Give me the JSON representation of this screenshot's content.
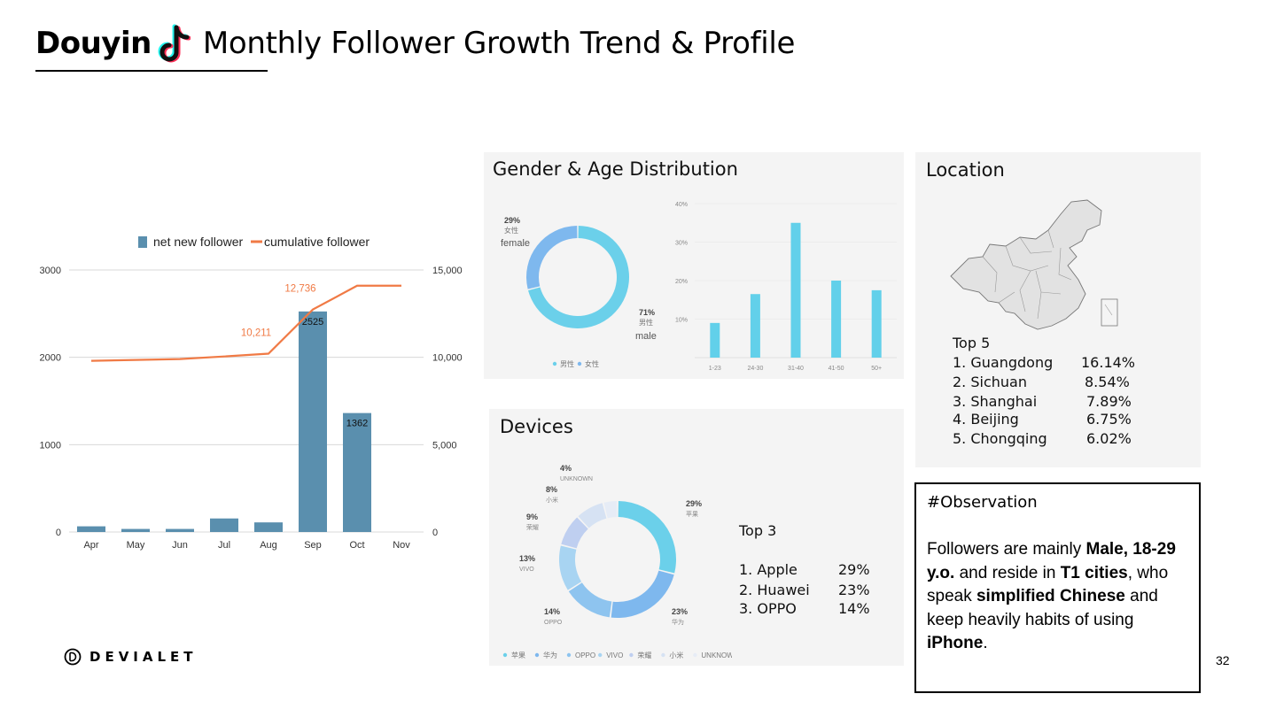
{
  "header": {
    "brand": "Douyin",
    "title": "Monthly Follower Growth Trend & Profile"
  },
  "chart_data": [
    {
      "type": "bar+line",
      "title": "",
      "legend": [
        "net new follower",
        "cumulative follower"
      ],
      "legend_position": "top",
      "categories": [
        "Apr",
        "May",
        "Jun",
        "Jul",
        "Aug",
        "Sep",
        "Oct",
        "Nov"
      ],
      "series": [
        {
          "name": "net new follower",
          "type": "bar",
          "axis": "left",
          "values": [
            65,
            35,
            35,
            155,
            110,
            2525,
            1362,
            0
          ]
        },
        {
          "name": "cumulative follower",
          "type": "line",
          "axis": "right",
          "values": [
            9800,
            9850,
            9900,
            10050,
            10211,
            12736,
            14100,
            14100
          ]
        }
      ],
      "bar_labels": {
        "5": "2525",
        "6": "1362"
      },
      "line_labels": {
        "4": "10,211",
        "5": "12,736"
      },
      "ylim_left": [
        0,
        3000
      ],
      "yticks_left": [
        "0",
        "1000",
        "2000",
        "3000"
      ],
      "ylim_right": [
        0,
        15000
      ],
      "yticks_right": [
        "0",
        "5,000",
        "10,000",
        "15,000"
      ],
      "grid": true,
      "colors": {
        "bar": "#5a8fae",
        "line": "#f07a45"
      }
    },
    {
      "type": "pie",
      "title": "Gender & Age Distribution",
      "labels": [
        "男性",
        "女性"
      ],
      "values": [
        71,
        29
      ],
      "value_labels": [
        "71%",
        "29%"
      ],
      "annotations": [
        "male",
        "female"
      ],
      "colors": [
        "#6bd0ea",
        "#7eb8ee"
      ]
    },
    {
      "type": "bar",
      "categories": [
        "1-23",
        "24-30",
        "31-40",
        "41-50",
        "50+"
      ],
      "values": [
        9,
        16.5,
        35,
        20,
        17.5
      ],
      "yticks": [
        "10%",
        "20%",
        "30%",
        "40%"
      ],
      "ylim": [
        0,
        40
      ],
      "grid": true,
      "colors": {
        "bar": "#62d0ea"
      }
    },
    {
      "type": "pie",
      "title": "Devices",
      "labels": [
        "苹果",
        "华为",
        "OPPO",
        "VIVO",
        "荣耀",
        "小米",
        "UNKNOWN"
      ],
      "values": [
        29,
        23,
        14,
        13,
        9,
        8,
        4
      ],
      "value_labels": [
        "29%",
        "23%",
        "14%",
        "13%",
        "9%",
        "8%",
        "4%"
      ],
      "legend_position": "bottom",
      "colors": [
        "#6bd0ea",
        "#7eb8ee",
        "#8ec4ef",
        "#a8d4f2",
        "#bfcff0",
        "#d6e2f3",
        "#e6ecf6"
      ]
    }
  ],
  "gender_panel": {
    "female_pct": "29%",
    "female_cn": "女性",
    "female_en": "female",
    "male_pct": "71%",
    "male_cn": "男性",
    "male_en": "male",
    "legend": [
      "男性",
      "女性"
    ]
  },
  "devices_panel": {
    "legend": [
      "苹果",
      "华为",
      "OPPO",
      "VIVO",
      "荣耀",
      "小米",
      "UNKNOWN"
    ],
    "top_title": "Top 3",
    "top": [
      {
        "name": "1.  Apple",
        "pct": "29%"
      },
      {
        "name": "2.  Huawei",
        "pct": "23%"
      },
      {
        "name": "3.  OPPO",
        "pct": "14%"
      }
    ]
  },
  "location_panel": {
    "title": "Location",
    "top_title": "Top 5",
    "top": [
      {
        "name": "1.  Guangdong",
        "pct": "16.14%"
      },
      {
        "name": "2.  Sichuan",
        "pct": "8.54%"
      },
      {
        "name": "3.  Shanghai",
        "pct": "7.89%"
      },
      {
        "name": "4.  Beijing",
        "pct": "6.75%"
      },
      {
        "name": "5.  Chongqing",
        "pct": "6.02%"
      }
    ],
    "map_icon": "china-map-icon"
  },
  "observation": {
    "heading": "#Observation",
    "t1": "Followers are mainly ",
    "b1": "Male, 18-29 y.o.",
    "t2": " and reside in ",
    "b2": "T1 cities",
    "t3": ", who speak ",
    "b3": "simplified Chinese",
    "t4": " and keep heavily habits of using ",
    "b4": "iPhone",
    "t5": "."
  },
  "footer": {
    "logo_text": "DEVIALET",
    "page_number": "32"
  }
}
